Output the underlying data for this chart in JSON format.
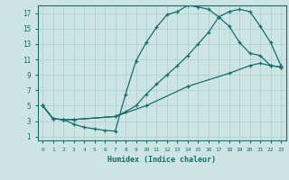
{
  "xlabel": "Humidex (Indice chaleur)",
  "bg_color": "#cde4e4",
  "grid_color": "#aacece",
  "line_color": "#1a6b6b",
  "xlim": [
    -0.5,
    23.5
  ],
  "ylim": [
    0.5,
    18.0
  ],
  "xticks": [
    0,
    1,
    2,
    3,
    4,
    5,
    6,
    7,
    8,
    9,
    10,
    11,
    12,
    13,
    14,
    15,
    16,
    17,
    18,
    19,
    20,
    21,
    22,
    23
  ],
  "yticks": [
    1,
    3,
    5,
    7,
    9,
    11,
    13,
    15,
    17
  ],
  "line1_x": [
    0,
    1,
    2,
    3,
    4,
    5,
    6,
    7,
    8,
    9,
    10,
    11,
    12,
    13,
    14,
    15,
    16,
    17,
    18,
    19,
    20,
    21,
    22,
    23
  ],
  "line1_y": [
    5.0,
    3.3,
    3.2,
    2.6,
    2.2,
    2.0,
    1.8,
    1.7,
    6.5,
    10.8,
    13.2,
    15.2,
    16.8,
    17.2,
    18.0,
    17.8,
    17.5,
    16.5,
    15.3,
    13.2,
    11.8,
    11.5,
    10.2,
    10.0
  ],
  "line2_x": [
    0,
    1,
    2,
    3,
    7,
    8,
    9,
    10,
    11,
    12,
    13,
    14,
    15,
    16,
    17,
    18,
    19,
    20,
    21,
    22,
    23
  ],
  "line2_y": [
    5.0,
    3.3,
    3.2,
    3.2,
    3.6,
    4.2,
    5.0,
    6.5,
    7.8,
    9.0,
    10.2,
    11.5,
    13.0,
    14.5,
    16.5,
    17.2,
    17.5,
    17.2,
    15.3,
    13.2,
    10.2
  ],
  "line3_x": [
    0,
    1,
    2,
    3,
    7,
    10,
    14,
    18,
    20,
    21,
    22,
    23
  ],
  "line3_y": [
    5.0,
    3.3,
    3.2,
    3.2,
    3.6,
    5.0,
    7.5,
    9.2,
    10.2,
    10.5,
    10.2,
    10.0
  ]
}
